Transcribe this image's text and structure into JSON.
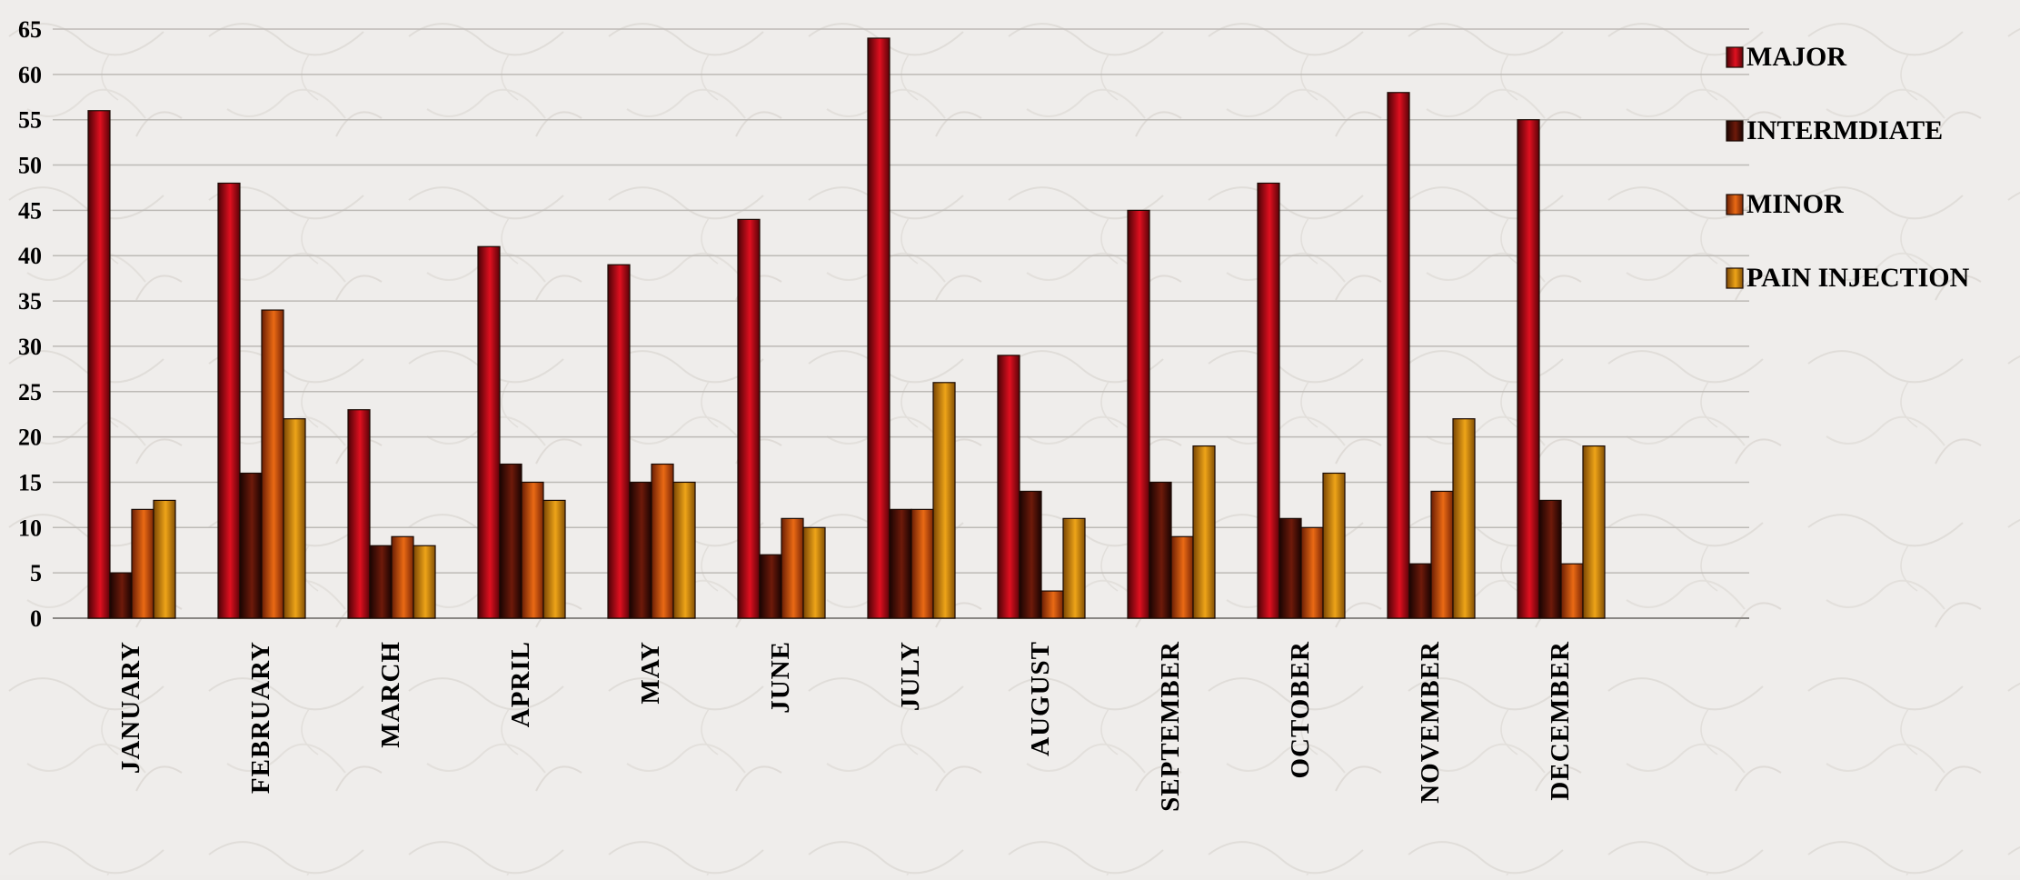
{
  "chart_data": {
    "type": "bar",
    "title": "",
    "xlabel": "",
    "ylabel": "",
    "ylim": [
      0,
      65
    ],
    "yticks": [
      0,
      5,
      10,
      15,
      20,
      25,
      30,
      35,
      40,
      45,
      50,
      55,
      60,
      65
    ],
    "grid": true,
    "legend_position": "right",
    "categories": [
      "JANUARY",
      "FEBRUARY",
      "MARCH",
      "APRIL",
      "MAY",
      "JUNE",
      "JULY",
      "AUGUST",
      "SEPTEMBER",
      "OCTOBER",
      "NOVEMBER",
      "DECEMBER"
    ],
    "series": [
      {
        "name": "MAJOR",
        "color": "#d0101a",
        "values": [
          56,
          48,
          23,
          41,
          39,
          44,
          64,
          29,
          45,
          48,
          58,
          55
        ]
      },
      {
        "name": "INTERMDIATE",
        "color": "#5a1208",
        "values": [
          5,
          16,
          8,
          17,
          15,
          7,
          12,
          14,
          15,
          11,
          6,
          13
        ]
      },
      {
        "name": "MINOR",
        "color": "#d85a10",
        "values": [
          12,
          34,
          9,
          15,
          17,
          11,
          12,
          3,
          9,
          10,
          14,
          6
        ]
      },
      {
        "name": "PAIN INJECTION",
        "color": "#d8900c",
        "values": [
          13,
          22,
          8,
          13,
          15,
          10,
          26,
          11,
          19,
          16,
          22,
          19
        ]
      }
    ]
  }
}
